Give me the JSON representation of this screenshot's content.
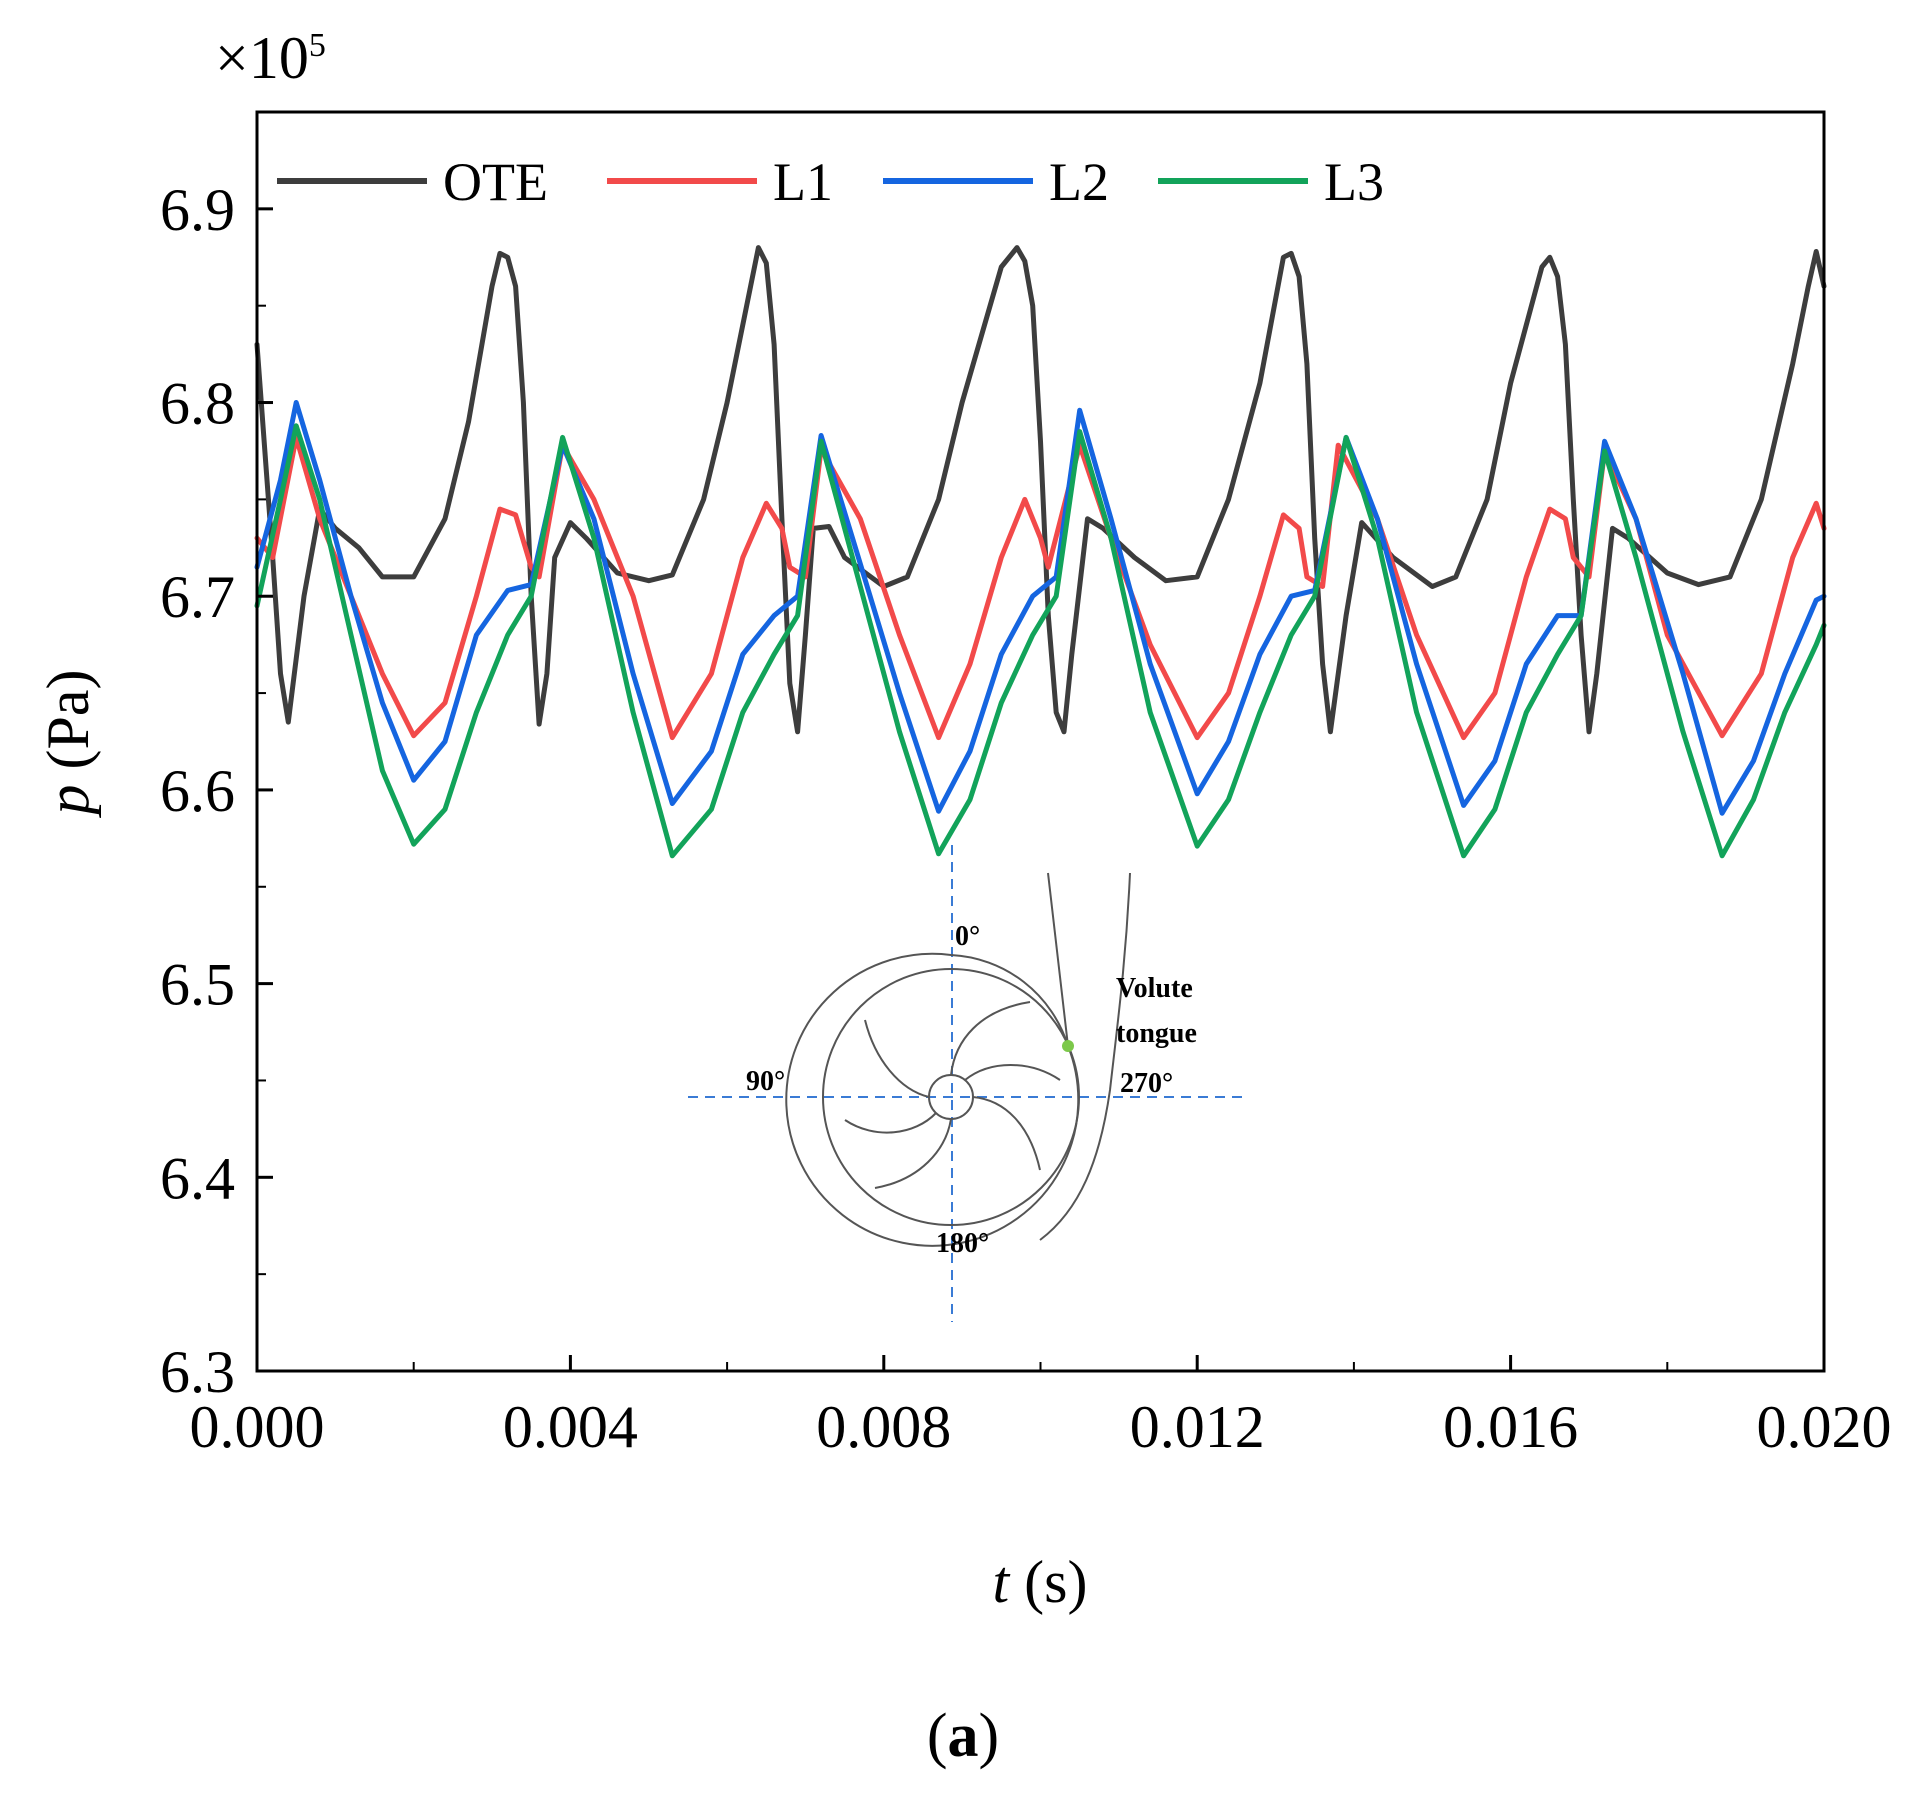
{
  "chart_data": {
    "type": "line",
    "title": "",
    "scale_label": "×10",
    "scale_exponent": "5",
    "xlabel_var": "t",
    "xlabel_unit": " (s)",
    "ylabel_var": "p",
    "ylabel_unit": " (Pa)",
    "xlim": [
      0.0,
      0.02
    ],
    "ylim": [
      6.3,
      6.95
    ],
    "x_ticks": [
      "0.000",
      "0.004",
      "0.008",
      "0.012",
      "0.016",
      "0.020"
    ],
    "x_tick_values": [
      0.0,
      0.004,
      0.008,
      0.012,
      0.016,
      0.02
    ],
    "y_ticks": [
      "6.3",
      "6.4",
      "6.5",
      "6.6",
      "6.7",
      "6.8",
      "6.9"
    ],
    "y_tick_values": [
      6.3,
      6.4,
      6.5,
      6.6,
      6.7,
      6.8,
      6.9
    ],
    "legend_position": "top-left",
    "series": [
      {
        "name": "OTE",
        "color": "#3d3d3d",
        "x": [
          0.0,
          0.0002,
          0.0003,
          0.0004,
          0.0006,
          0.0008,
          0.001,
          0.0013,
          0.0016,
          0.002,
          0.0024,
          0.0027,
          0.003,
          0.0031,
          0.0032,
          0.0033,
          0.0034,
          0.0035,
          0.0036,
          0.0037,
          0.0038,
          0.004,
          0.0042,
          0.0046,
          0.005,
          0.0053,
          0.0057,
          0.006,
          0.0063,
          0.0064,
          0.0065,
          0.0066,
          0.0067,
          0.0068,
          0.0069,
          0.007,
          0.0071,
          0.0073,
          0.0075,
          0.008,
          0.0083,
          0.0087,
          0.009,
          0.0095,
          0.0097,
          0.0098,
          0.0099,
          0.01,
          0.0101,
          0.0102,
          0.0103,
          0.0104,
          0.0106,
          0.0108,
          0.0112,
          0.0116,
          0.012,
          0.0124,
          0.0128,
          0.0131,
          0.0132,
          0.0133,
          0.0134,
          0.0135,
          0.0136,
          0.0137,
          0.0139,
          0.0141,
          0.0145,
          0.015,
          0.0153,
          0.0157,
          0.016,
          0.0164,
          0.0165,
          0.0166,
          0.0167,
          0.0168,
          0.0169,
          0.017,
          0.0171,
          0.0173,
          0.0175,
          0.018,
          0.0184,
          0.0188,
          0.0192,
          0.0196,
          0.0198,
          0.0199,
          0.02
        ],
        "values": [
          6.83,
          6.72,
          6.66,
          6.635,
          6.7,
          6.745,
          6.735,
          6.725,
          6.71,
          6.71,
          6.74,
          6.79,
          6.86,
          6.877,
          6.875,
          6.86,
          6.8,
          6.7,
          6.634,
          6.66,
          6.72,
          6.738,
          6.73,
          6.712,
          6.708,
          6.711,
          6.75,
          6.8,
          6.86,
          6.88,
          6.872,
          6.83,
          6.74,
          6.655,
          6.63,
          6.68,
          6.735,
          6.736,
          6.72,
          6.705,
          6.71,
          6.75,
          6.8,
          6.87,
          6.88,
          6.873,
          6.85,
          6.78,
          6.69,
          6.64,
          6.63,
          6.67,
          6.74,
          6.735,
          6.72,
          6.708,
          6.71,
          6.75,
          6.81,
          6.875,
          6.877,
          6.865,
          6.82,
          6.73,
          6.665,
          6.63,
          6.69,
          6.738,
          6.72,
          6.705,
          6.71,
          6.75,
          6.81,
          6.87,
          6.875,
          6.865,
          6.83,
          6.75,
          6.68,
          6.63,
          6.66,
          6.735,
          6.73,
          6.712,
          6.706,
          6.71,
          6.75,
          6.82,
          6.86,
          6.878,
          6.86
        ]
      },
      {
        "name": "L1",
        "color": "#f24a4a",
        "x": [
          0.0,
          0.0002,
          0.0005,
          0.0008,
          0.0012,
          0.0016,
          0.002,
          0.0024,
          0.0028,
          0.0031,
          0.0033,
          0.0035,
          0.0036,
          0.0039,
          0.0043,
          0.0048,
          0.0053,
          0.0058,
          0.0062,
          0.0065,
          0.0067,
          0.0068,
          0.007,
          0.0072,
          0.0077,
          0.0082,
          0.0087,
          0.0091,
          0.0095,
          0.0098,
          0.01,
          0.0101,
          0.0105,
          0.0109,
          0.0114,
          0.012,
          0.0124,
          0.0128,
          0.0131,
          0.0133,
          0.0134,
          0.0136,
          0.0138,
          0.0143,
          0.0148,
          0.0154,
          0.0158,
          0.0162,
          0.0165,
          0.0167,
          0.0168,
          0.017,
          0.0172,
          0.0176,
          0.018,
          0.0187,
          0.0192,
          0.0196,
          0.0199,
          0.02
        ],
        "values": [
          6.73,
          6.72,
          6.782,
          6.74,
          6.7,
          6.66,
          6.628,
          6.645,
          6.7,
          6.745,
          6.742,
          6.715,
          6.71,
          6.778,
          6.75,
          6.7,
          6.627,
          6.66,
          6.72,
          6.748,
          6.735,
          6.715,
          6.71,
          6.776,
          6.74,
          6.68,
          6.627,
          6.665,
          6.72,
          6.75,
          6.73,
          6.715,
          6.778,
          6.73,
          6.675,
          6.627,
          6.65,
          6.7,
          6.742,
          6.735,
          6.71,
          6.705,
          6.778,
          6.74,
          6.68,
          6.627,
          6.65,
          6.71,
          6.745,
          6.74,
          6.72,
          6.71,
          6.775,
          6.74,
          6.68,
          6.628,
          6.66,
          6.72,
          6.748,
          6.735
        ]
      },
      {
        "name": "L2",
        "color": "#1565e0",
        "x": [
          0.0,
          0.0003,
          0.0005,
          0.0008,
          0.0012,
          0.0016,
          0.002,
          0.0024,
          0.0028,
          0.0032,
          0.0035,
          0.0039,
          0.0043,
          0.0048,
          0.0053,
          0.0058,
          0.0062,
          0.0066,
          0.0069,
          0.0072,
          0.0076,
          0.0082,
          0.0087,
          0.0091,
          0.0095,
          0.0099,
          0.0102,
          0.0105,
          0.0109,
          0.0114,
          0.012,
          0.0124,
          0.0128,
          0.0132,
          0.0135,
          0.0139,
          0.0143,
          0.0148,
          0.0154,
          0.0158,
          0.0162,
          0.0166,
          0.0169,
          0.0172,
          0.0176,
          0.0182,
          0.0187,
          0.0191,
          0.0195,
          0.0199,
          0.02
        ],
        "values": [
          6.715,
          6.76,
          6.8,
          6.76,
          6.7,
          6.645,
          6.605,
          6.625,
          6.68,
          6.703,
          6.706,
          6.778,
          6.74,
          6.66,
          6.593,
          6.62,
          6.67,
          6.69,
          6.7,
          6.783,
          6.73,
          6.65,
          6.589,
          6.62,
          6.67,
          6.7,
          6.71,
          6.796,
          6.74,
          6.665,
          6.598,
          6.625,
          6.67,
          6.7,
          6.703,
          6.782,
          6.74,
          6.665,
          6.592,
          6.615,
          6.665,
          6.69,
          6.69,
          6.78,
          6.74,
          6.66,
          6.588,
          6.615,
          6.66,
          6.698,
          6.7
        ]
      },
      {
        "name": "L3",
        "color": "#12a35a",
        "x": [
          0.0,
          0.0003,
          0.0005,
          0.0008,
          0.0012,
          0.0016,
          0.002,
          0.0024,
          0.0028,
          0.0032,
          0.0035,
          0.0039,
          0.0043,
          0.0048,
          0.0053,
          0.0058,
          0.0062,
          0.0066,
          0.0069,
          0.0072,
          0.0076,
          0.0082,
          0.0087,
          0.0091,
          0.0095,
          0.0099,
          0.0102,
          0.0105,
          0.0109,
          0.0114,
          0.012,
          0.0124,
          0.0128,
          0.0132,
          0.0135,
          0.0139,
          0.0143,
          0.0148,
          0.0154,
          0.0158,
          0.0162,
          0.0166,
          0.0169,
          0.0172,
          0.0176,
          0.0182,
          0.0187,
          0.0191,
          0.0195,
          0.0199,
          0.02
        ],
        "values": [
          6.695,
          6.75,
          6.788,
          6.75,
          6.68,
          6.61,
          6.572,
          6.59,
          6.64,
          6.68,
          6.7,
          6.782,
          6.73,
          6.64,
          6.566,
          6.59,
          6.64,
          6.67,
          6.69,
          6.78,
          6.72,
          6.63,
          6.567,
          6.595,
          6.645,
          6.68,
          6.7,
          6.785,
          6.73,
          6.64,
          6.571,
          6.595,
          6.64,
          6.68,
          6.7,
          6.782,
          6.73,
          6.64,
          6.566,
          6.59,
          6.64,
          6.67,
          6.69,
          6.775,
          6.72,
          6.63,
          6.566,
          6.595,
          6.64,
          6.675,
          6.685
        ]
      }
    ]
  },
  "inset": {
    "label_0": "0°",
    "label_90": "90°",
    "label_180": "180°",
    "label_270": "270°",
    "tongue_line1": "Volute",
    "tongue_line2": "tongue",
    "tongue_color": "#7cc84a"
  },
  "caption": {
    "open": "(",
    "letter": "a",
    "close": ")"
  }
}
